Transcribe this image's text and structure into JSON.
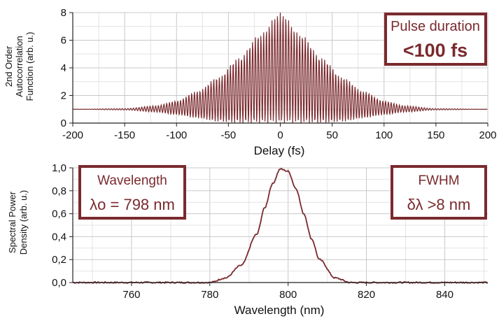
{
  "chart_data": [
    {
      "type": "line",
      "xlabel": "Delay (fs)",
      "ylabel_lines": [
        "2nd Order",
        "Autocorrelation",
        "Function (arb. u.)"
      ],
      "xlim": [
        -200,
        200
      ],
      "ylim": [
        0,
        8
      ],
      "x_ticks": [
        -200,
        -150,
        -100,
        -50,
        0,
        50,
        100,
        150,
        200
      ],
      "y_ticks": [
        0,
        2,
        4,
        6,
        8
      ],
      "grid": true,
      "line_color": "#7a2a2e",
      "series": [
        {
          "description_values": "interferometric autocorrelation trace: fringes oscillating between lower and upper envelopes",
          "x": [
            -200,
            -150,
            -120,
            -100,
            -80,
            -60,
            -40,
            -20,
            0,
            20,
            40,
            60,
            80,
            100,
            120,
            150,
            200
          ],
          "upper_envelope": [
            1.0,
            1.05,
            1.25,
            1.6,
            2.3,
            3.3,
            4.7,
            6.4,
            8.0,
            6.4,
            4.7,
            3.3,
            2.3,
            1.6,
            1.25,
            1.05,
            1.0
          ],
          "lower_envelope": [
            1.0,
            0.95,
            0.8,
            0.6,
            0.35,
            0.1,
            0.0,
            0.0,
            0.0,
            0.0,
            0.0,
            0.1,
            0.35,
            0.6,
            0.8,
            0.95,
            1.0
          ]
        }
      ],
      "annotation": {
        "label": "Pulse duration",
        "value": "<100 fs"
      }
    },
    {
      "type": "line",
      "xlabel": "Wavelength (nm)",
      "ylabel_lines": [
        "Spectral Power",
        "Density (arb. u.)"
      ],
      "xlim": [
        745,
        851
      ],
      "ylim": [
        0,
        1
      ],
      "x_ticks": [
        760,
        780,
        800,
        820,
        840
      ],
      "y_ticks": [
        "0,0",
        "0,2",
        "0,4",
        "0,6",
        "0,8",
        "1,0"
      ],
      "y_tick_values": [
        0,
        0.2,
        0.4,
        0.6,
        0.8,
        1.0
      ],
      "grid": true,
      "line_color": "#7a2a2e",
      "series": [
        {
          "x": [
            745,
            780,
            784,
            788,
            792,
            794,
            796,
            798,
            800,
            802,
            804,
            806,
            808,
            812,
            816,
            820,
            851
          ],
          "y": [
            0.0,
            0.0,
            0.04,
            0.15,
            0.42,
            0.65,
            0.86,
            0.99,
            0.97,
            0.82,
            0.6,
            0.38,
            0.2,
            0.04,
            0.0,
            0.0,
            0.0
          ]
        }
      ],
      "annotations": [
        {
          "label": "Wavelength",
          "value": "λo = 798 nm"
        },
        {
          "label": "FWHM",
          "value": "δλ >8 nm"
        }
      ]
    }
  ]
}
